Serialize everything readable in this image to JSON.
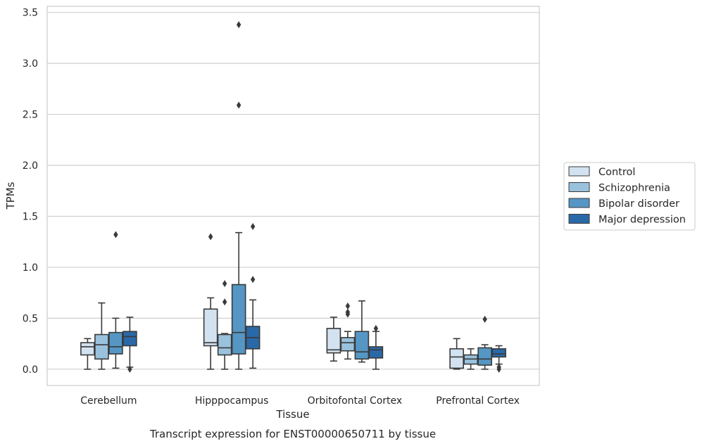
{
  "chart_data": {
    "type": "box",
    "xlabel": "Tissue",
    "ylabel": "TPMs",
    "caption": "Transcript expression for ENST00000650711 by tissue",
    "ylim": [
      -0.16,
      3.56
    ],
    "yticks": [
      0.0,
      0.5,
      1.0,
      1.5,
      2.0,
      2.5,
      3.0,
      3.5
    ],
    "ytick_labels": [
      "0.0",
      "0.5",
      "1.0",
      "1.5",
      "2.0",
      "2.5",
      "3.0",
      "3.5"
    ],
    "grid": "horizontal",
    "legend_position": "right",
    "categories": [
      "Cerebellum",
      "Hipppocampus",
      "Orbitofontal Cortex",
      "Prefrontal Cortex"
    ],
    "series": [
      {
        "name": "Control",
        "color": "#d3e2f0",
        "boxes": [
          {
            "whislo": 0.0,
            "q1": 0.14,
            "median": 0.22,
            "q3": 0.26,
            "whishi": 0.3,
            "fliers": []
          },
          {
            "whislo": 0.0,
            "q1": 0.23,
            "median": 0.26,
            "q3": 0.59,
            "whishi": 0.7,
            "fliers": [
              1.3
            ]
          },
          {
            "whislo": 0.08,
            "q1": 0.16,
            "median": 0.19,
            "q3": 0.4,
            "whishi": 0.51,
            "fliers": []
          },
          {
            "whislo": 0.0,
            "q1": 0.01,
            "median": 0.12,
            "q3": 0.2,
            "whishi": 0.3,
            "fliers": []
          }
        ]
      },
      {
        "name": "Schizophrenia",
        "color": "#9ac2dd",
        "boxes": [
          {
            "whislo": 0.0,
            "q1": 0.1,
            "median": 0.24,
            "q3": 0.34,
            "whishi": 0.65,
            "fliers": []
          },
          {
            "whislo": 0.0,
            "q1": 0.14,
            "median": 0.21,
            "q3": 0.34,
            "whishi": 0.35,
            "fliers": [
              0.66,
              0.84
            ]
          },
          {
            "whislo": 0.1,
            "q1": 0.18,
            "median": 0.26,
            "q3": 0.31,
            "whishi": 0.37,
            "fliers": [
              0.54,
              0.56,
              0.62
            ]
          },
          {
            "whislo": 0.0,
            "q1": 0.05,
            "median": 0.1,
            "q3": 0.14,
            "whishi": 0.2,
            "fliers": []
          }
        ]
      },
      {
        "name": "Bipolar disorder",
        "color": "#5596c4",
        "boxes": [
          {
            "whislo": 0.01,
            "q1": 0.15,
            "median": 0.22,
            "q3": 0.36,
            "whishi": 0.5,
            "fliers": [
              1.32
            ]
          },
          {
            "whislo": 0.0,
            "q1": 0.15,
            "median": 0.36,
            "q3": 0.83,
            "whishi": 1.34,
            "fliers": [
              2.59,
              3.38
            ]
          },
          {
            "whislo": 0.07,
            "q1": 0.1,
            "median": 0.17,
            "q3": 0.37,
            "whishi": 0.67,
            "fliers": []
          },
          {
            "whislo": 0.0,
            "q1": 0.04,
            "median": 0.1,
            "q3": 0.21,
            "whishi": 0.24,
            "fliers": [
              0.49
            ]
          }
        ]
      },
      {
        "name": "Major depression",
        "color": "#2a69a8",
        "boxes": [
          {
            "whislo": 0.02,
            "q1": 0.23,
            "median": 0.32,
            "q3": 0.37,
            "whishi": 0.51,
            "fliers": [
              0.0
            ]
          },
          {
            "whislo": 0.01,
            "q1": 0.2,
            "median": 0.31,
            "q3": 0.42,
            "whishi": 0.68,
            "fliers": [
              0.88,
              1.4
            ]
          },
          {
            "whislo": 0.0,
            "q1": 0.11,
            "median": 0.19,
            "q3": 0.22,
            "whishi": 0.37,
            "fliers": [
              0.4
            ]
          },
          {
            "whislo": 0.05,
            "q1": 0.12,
            "median": 0.15,
            "q3": 0.2,
            "whishi": 0.23,
            "fliers": [
              0.0,
              0.02
            ]
          }
        ]
      }
    ]
  },
  "colors": {
    "edge": "#3a3a3a",
    "grid": "#cfcfcf",
    "frame": "#cccccc"
  }
}
